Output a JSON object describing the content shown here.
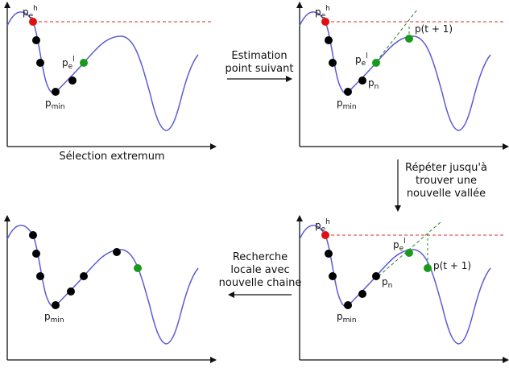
{
  "labels": {
    "p_base": "p",
    "sub_e": "e",
    "sup_h": "h",
    "sup_l": "l",
    "p_min_base": "p",
    "sub_min": "min",
    "p_n_base": "p",
    "sub_n": "n",
    "p_next": "p(t + 1)"
  },
  "captions": {
    "panel1": "Sélection extremum",
    "arrow_right": [
      "Estimation",
      "point suivant"
    ],
    "arrow_down": [
      "Répéter jusqu'à",
      "trouver une",
      "nouvelle vallée"
    ],
    "arrow_left": [
      "Recherche",
      "locale avec",
      "nouvelle chaine"
    ]
  },
  "colors": {
    "curve": "#5b5bd6",
    "point_black": "#000000",
    "point_red": "#e01010",
    "point_green": "#1a9a1a",
    "dashed_red": "#d03030",
    "dashed_green": "#2e7d32",
    "axis": "#111111"
  }
}
